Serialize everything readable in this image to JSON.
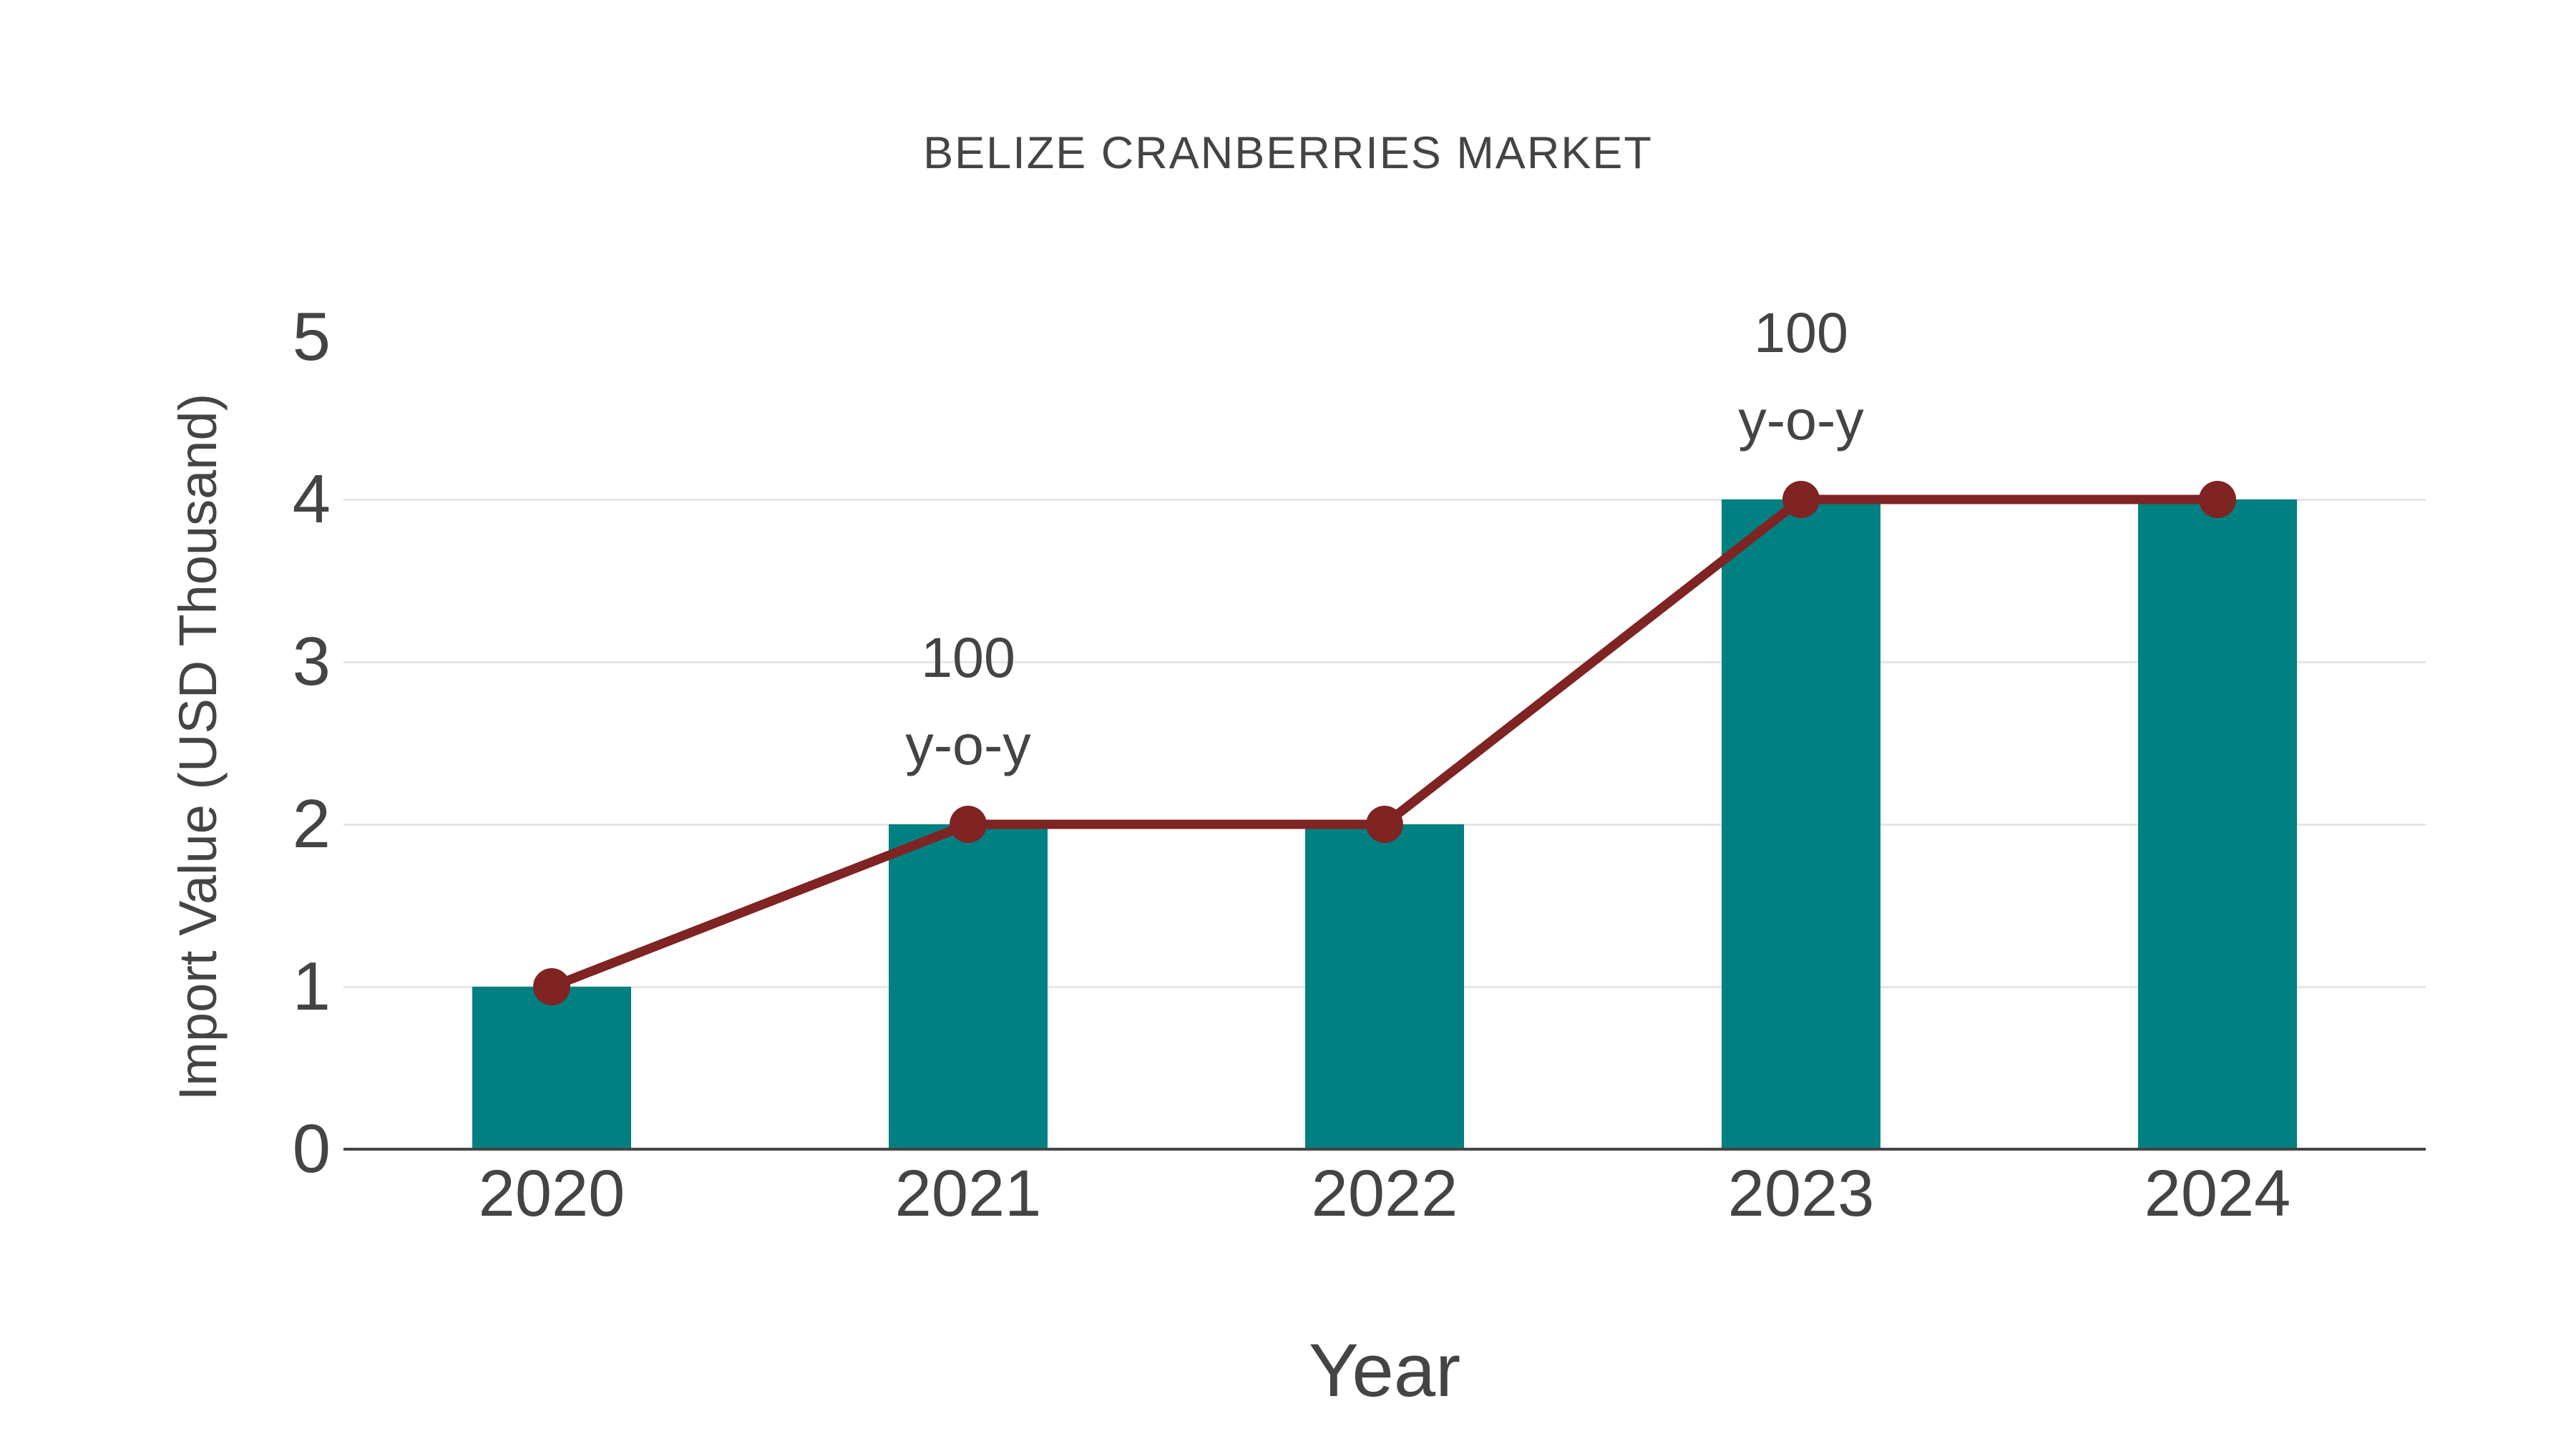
{
  "chart_data": {
    "type": "bar",
    "title": "BELIZE CRANBERRIES MARKET",
    "xlabel": "Year",
    "ylabel": "Import Value (USD Thousand)",
    "categories": [
      "2020",
      "2021",
      "2022",
      "2023",
      "2024"
    ],
    "series": [
      {
        "name": "Import Value bars",
        "type": "bar",
        "values": [
          1,
          2,
          2,
          4,
          4
        ]
      },
      {
        "name": "Import Value trend line",
        "type": "line",
        "values": [
          1,
          2,
          2,
          4,
          4
        ]
      }
    ],
    "ylim": [
      0,
      5
    ],
    "yticks": [
      0,
      1,
      2,
      3,
      4,
      5
    ],
    "grid": true,
    "legend_position": "none",
    "annotations": [
      {
        "category": "2021",
        "value": 2,
        "lines": [
          "100",
          "y-o-y"
        ]
      },
      {
        "category": "2023",
        "value": 4,
        "lines": [
          "100",
          "y-o-y"
        ]
      }
    ],
    "colors": {
      "bar": "#008080",
      "line": "#7F2323",
      "marker": "#7F2323",
      "text": "#444444",
      "grid": "#e5e5e5",
      "axis": "#444444",
      "background": "#ffffff"
    }
  }
}
